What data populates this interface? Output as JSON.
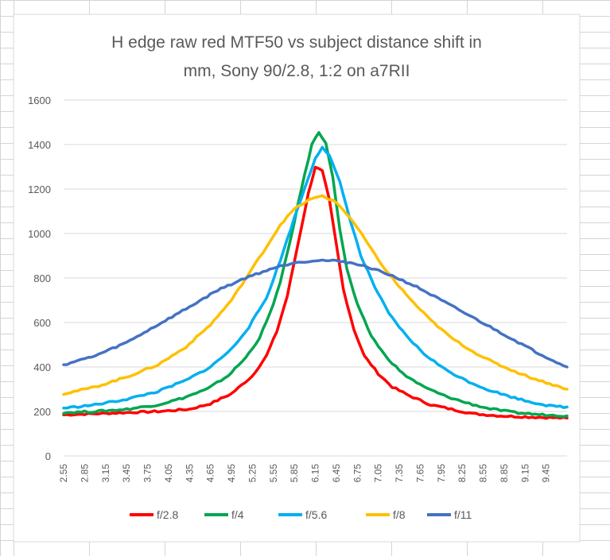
{
  "chart_data": {
    "type": "line",
    "title_lines": [
      "H edge raw red MTF50 vs subject distance shift in",
      "mm, Sony 90/2.8, 1:2 on a7RII"
    ],
    "xlabel": "",
    "ylabel": "",
    "ylim": [
      0,
      1600
    ],
    "yticks": [
      "0",
      "200",
      "400",
      "600",
      "800",
      "1000",
      "1200",
      "1400",
      "1600"
    ],
    "xlim": [
      2.55,
      9.75
    ],
    "xticks": [
      "2.55",
      "2.85",
      "3.15",
      "3.45",
      "3.75",
      "4.05",
      "4.35",
      "4.65",
      "4.95",
      "5.25",
      "5.55",
      "5.85",
      "6.15",
      "6.45",
      "6.75",
      "7.05",
      "7.35",
      "7.65",
      "7.95",
      "8.25",
      "8.55",
      "8.85",
      "9.15",
      "9.45"
    ],
    "grid": "horizontal",
    "legend_position": "bottom",
    "series": [
      {
        "name": "f/2.8",
        "color": "#ff0000",
        "points": [
          [
            2.55,
            185
          ],
          [
            3.0,
            190
          ],
          [
            3.45,
            195
          ],
          [
            3.9,
            200
          ],
          [
            4.35,
            210
          ],
          [
            4.65,
            235
          ],
          [
            4.95,
            280
          ],
          [
            5.25,
            360
          ],
          [
            5.45,
            450
          ],
          [
            5.6,
            560
          ],
          [
            5.75,
            720
          ],
          [
            5.9,
            950
          ],
          [
            6.05,
            1180
          ],
          [
            6.15,
            1300
          ],
          [
            6.25,
            1280
          ],
          [
            6.35,
            1150
          ],
          [
            6.45,
            950
          ],
          [
            6.55,
            750
          ],
          [
            6.7,
            570
          ],
          [
            6.85,
            450
          ],
          [
            7.05,
            370
          ],
          [
            7.25,
            310
          ],
          [
            7.5,
            270
          ],
          [
            7.8,
            230
          ],
          [
            8.1,
            210
          ],
          [
            8.4,
            190
          ],
          [
            8.8,
            180
          ],
          [
            9.2,
            175
          ],
          [
            9.75,
            170
          ]
        ]
      },
      {
        "name": "f/4",
        "color": "#00a650",
        "points": [
          [
            2.55,
            195
          ],
          [
            3.0,
            200
          ],
          [
            3.45,
            210
          ],
          [
            3.9,
            230
          ],
          [
            4.25,
            260
          ],
          [
            4.6,
            300
          ],
          [
            4.9,
            360
          ],
          [
            5.15,
            440
          ],
          [
            5.35,
            530
          ],
          [
            5.5,
            640
          ],
          [
            5.65,
            780
          ],
          [
            5.8,
            980
          ],
          [
            5.95,
            1200
          ],
          [
            6.1,
            1400
          ],
          [
            6.2,
            1455
          ],
          [
            6.3,
            1410
          ],
          [
            6.4,
            1250
          ],
          [
            6.5,
            1020
          ],
          [
            6.6,
            840
          ],
          [
            6.75,
            680
          ],
          [
            6.95,
            540
          ],
          [
            7.15,
            450
          ],
          [
            7.4,
            370
          ],
          [
            7.7,
            310
          ],
          [
            8.0,
            270
          ],
          [
            8.3,
            240
          ],
          [
            8.6,
            215
          ],
          [
            9.0,
            195
          ],
          [
            9.4,
            185
          ],
          [
            9.75,
            180
          ]
        ]
      },
      {
        "name": "f/5.6",
        "color": "#00b0f0",
        "points": [
          [
            2.55,
            215
          ],
          [
            3.0,
            230
          ],
          [
            3.45,
            255
          ],
          [
            3.9,
            290
          ],
          [
            4.3,
            340
          ],
          [
            4.65,
            400
          ],
          [
            4.95,
            480
          ],
          [
            5.2,
            580
          ],
          [
            5.45,
            710
          ],
          [
            5.65,
            880
          ],
          [
            5.85,
            1070
          ],
          [
            6.05,
            1250
          ],
          [
            6.15,
            1340
          ],
          [
            6.25,
            1390
          ],
          [
            6.35,
            1350
          ],
          [
            6.5,
            1230
          ],
          [
            6.65,
            1060
          ],
          [
            6.8,
            900
          ],
          [
            7.0,
            760
          ],
          [
            7.2,
            640
          ],
          [
            7.45,
            540
          ],
          [
            7.7,
            460
          ],
          [
            8.0,
            390
          ],
          [
            8.3,
            340
          ],
          [
            8.6,
            300
          ],
          [
            8.9,
            270
          ],
          [
            9.2,
            245
          ],
          [
            9.5,
            225
          ],
          [
            9.75,
            220
          ]
        ]
      },
      {
        "name": "f/8",
        "color": "#ffc000",
        "points": [
          [
            2.55,
            280
          ],
          [
            3.0,
            310
          ],
          [
            3.45,
            355
          ],
          [
            3.9,
            410
          ],
          [
            4.3,
            490
          ],
          [
            4.65,
            590
          ],
          [
            4.95,
            700
          ],
          [
            5.2,
            820
          ],
          [
            5.45,
            940
          ],
          [
            5.65,
            1040
          ],
          [
            5.85,
            1110
          ],
          [
            6.05,
            1150
          ],
          [
            6.25,
            1170
          ],
          [
            6.45,
            1140
          ],
          [
            6.65,
            1070
          ],
          [
            6.85,
            980
          ],
          [
            7.05,
            880
          ],
          [
            7.3,
            780
          ],
          [
            7.55,
            690
          ],
          [
            7.8,
            610
          ],
          [
            8.1,
            530
          ],
          [
            8.4,
            470
          ],
          [
            8.7,
            420
          ],
          [
            9.0,
            380
          ],
          [
            9.3,
            345
          ],
          [
            9.55,
            320
          ],
          [
            9.75,
            300
          ]
        ]
      },
      {
        "name": "f/11",
        "color": "#4472c4",
        "points": [
          [
            2.55,
            410
          ],
          [
            3.0,
            450
          ],
          [
            3.45,
            510
          ],
          [
            3.9,
            590
          ],
          [
            4.35,
            670
          ],
          [
            4.75,
            745
          ],
          [
            5.15,
            800
          ],
          [
            5.5,
            840
          ],
          [
            5.85,
            870
          ],
          [
            6.2,
            880
          ],
          [
            6.55,
            875
          ],
          [
            6.9,
            850
          ],
          [
            7.25,
            810
          ],
          [
            7.6,
            760
          ],
          [
            7.95,
            700
          ],
          [
            8.3,
            640
          ],
          [
            8.65,
            580
          ],
          [
            9.0,
            520
          ],
          [
            9.35,
            460
          ],
          [
            9.75,
            400
          ]
        ]
      }
    ]
  }
}
